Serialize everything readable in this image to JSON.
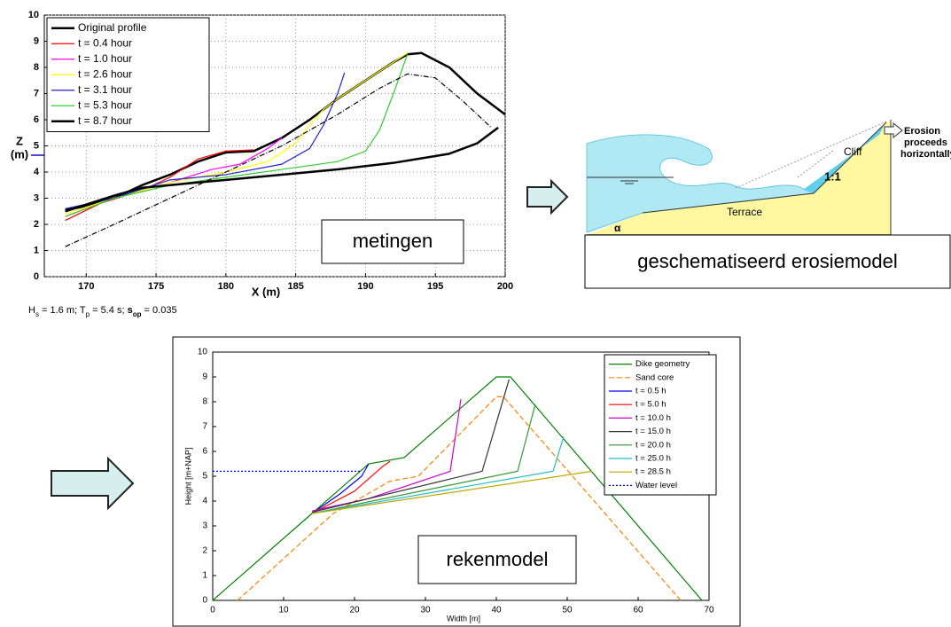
{
  "chart_data": [
    {
      "type": "line",
      "xlabel": "X (m)",
      "ylabel": [
        "Z",
        "(m)"
      ],
      "xlim": [
        167,
        200
      ],
      "ylim": [
        0,
        10
      ],
      "xticks": [
        170,
        175,
        180,
        185,
        190,
        195,
        200
      ],
      "yticks": [
        0,
        1,
        2,
        3,
        4,
        5,
        6,
        7,
        8,
        9,
        10
      ],
      "grid": true,
      "legend": "upper left",
      "annotation": "metingen",
      "caption": [
        "H",
        "s",
        " = 1.6 m; T",
        "p",
        " = 5.4 s; ",
        "s",
        "op",
        " = 0.035"
      ],
      "series": [
        {
          "name": "Original profile",
          "color": "#000000",
          "style": "thick",
          "x": [
            168.5,
            170,
            172,
            174,
            176,
            178,
            180,
            182,
            184,
            186,
            188,
            190,
            192,
            193,
            194,
            196,
            198,
            200
          ],
          "values": [
            2.55,
            2.7,
            3.0,
            3.5,
            3.9,
            4.4,
            4.75,
            4.8,
            5.3,
            6.0,
            6.8,
            7.5,
            8.2,
            8.5,
            8.55,
            8.0,
            7.0,
            6.2
          ]
        },
        {
          "name": "t = 0.4 hour",
          "color": "#ff0000",
          "style": "solid",
          "x": [
            168.5,
            171,
            174,
            176,
            178,
            180,
            182
          ],
          "values": [
            2.15,
            2.8,
            3.3,
            3.8,
            4.5,
            4.8,
            4.85
          ]
        },
        {
          "name": "t = 1.0 hour",
          "color": "#ff00ff",
          "style": "solid",
          "x": [
            168.5,
            172,
            176,
            179,
            181,
            183,
            184
          ],
          "values": [
            2.3,
            3.0,
            3.6,
            4.1,
            4.3,
            4.9,
            5.3
          ]
        },
        {
          "name": "t = 2.6 hour",
          "color": "#ffff00",
          "style": "solid",
          "x": [
            168.5,
            172,
            176,
            180,
            183,
            185,
            186,
            187,
            188,
            190,
            192,
            193
          ],
          "values": [
            2.4,
            3.0,
            3.6,
            4.0,
            4.4,
            5.1,
            5.8,
            6.4,
            6.8,
            7.5,
            8.2,
            8.55
          ]
        },
        {
          "name": "t = 3.1 hour",
          "color": "#2222cc",
          "style": "solid",
          "x": [
            168.5,
            172,
            176,
            180,
            184,
            186,
            187,
            188,
            188.5
          ],
          "values": [
            2.6,
            3.0,
            3.7,
            3.9,
            4.3,
            4.9,
            5.8,
            7.0,
            7.8
          ]
        },
        {
          "name": "t = 5.3 hour",
          "color": "#33cc33",
          "style": "solid",
          "x": [
            168.5,
            172,
            176,
            180,
            184,
            188,
            190,
            191,
            192,
            193
          ],
          "values": [
            2.3,
            3.0,
            3.5,
            3.8,
            4.1,
            4.4,
            4.8,
            5.6,
            7.0,
            8.5
          ]
        },
        {
          "name": "t = 8.7 hour",
          "color": "#000000",
          "style": "thick",
          "x": [
            168.5,
            172,
            174,
            176,
            178,
            180,
            184,
            188,
            192,
            196,
            198,
            199,
            199.5
          ],
          "values": [
            2.5,
            3.1,
            3.4,
            3.5,
            3.6,
            3.7,
            3.9,
            4.1,
            4.35,
            4.7,
            5.1,
            5.5,
            5.7
          ]
        },
        {
          "color": "#000000",
          "style": "dashdot",
          "x": [
            168.5,
            172,
            176,
            180,
            184,
            188,
            191,
            193,
            195,
            197,
            199
          ],
          "values": [
            1.15,
            2.0,
            3.0,
            4.0,
            5.0,
            6.2,
            7.2,
            7.75,
            7.6,
            6.7,
            5.7
          ]
        }
      ]
    },
    {
      "type": "line",
      "xlabel": "Width [m]",
      "ylabel": "Height [m+NAP]",
      "xlim": [
        0,
        70
      ],
      "ylim": [
        0,
        10
      ],
      "xticks": [
        0,
        10,
        20,
        30,
        40,
        50,
        60,
        70
      ],
      "yticks": [
        0,
        1,
        2,
        3,
        4,
        5,
        6,
        7,
        8,
        9,
        10
      ],
      "grid": false,
      "legend": "upper right",
      "annotation": "rekenmodel",
      "series": [
        {
          "name": "Dike geometry",
          "color": "#008000",
          "style": "solid",
          "x": [
            0,
            14,
            22,
            27,
            40,
            42,
            69
          ],
          "values": [
            0,
            3.5,
            5.5,
            5.75,
            9,
            9,
            0
          ]
        },
        {
          "name": "Sand core",
          "color": "#ff8000",
          "style": "dashed",
          "x": [
            3.5,
            17,
            25,
            29,
            40,
            41,
            66
          ],
          "values": [
            0,
            3.5,
            4.8,
            5.0,
            8.2,
            8.2,
            0
          ]
        },
        {
          "name": "t = 0.5 h",
          "color": "#0000ff",
          "style": "solid",
          "x": [
            14,
            18,
            21,
            22
          ],
          "values": [
            3.5,
            4.3,
            5.0,
            5.5
          ]
        },
        {
          "name": "t = 5.0 h",
          "color": "#ff0000",
          "style": "solid",
          "x": [
            14,
            20,
            24,
            25
          ],
          "values": [
            3.5,
            4.4,
            5.4,
            5.6
          ]
        },
        {
          "name": "t = 10.0 h",
          "color": "#cc00cc",
          "style": "solid",
          "x": [
            14,
            22,
            33.5,
            35
          ],
          "values": [
            3.6,
            4.1,
            5.2,
            8.1
          ]
        },
        {
          "name": "t = 15.0 h",
          "color": "#333333",
          "style": "solid",
          "x": [
            14,
            38,
            41.8
          ],
          "values": [
            3.55,
            5.2,
            8.9
          ]
        },
        {
          "name": "t = 20.0 h",
          "color": "#339933",
          "style": "solid",
          "x": [
            14,
            43,
            45.5
          ],
          "values": [
            3.5,
            5.2,
            7.9
          ]
        },
        {
          "name": "t = 25.0 h",
          "color": "#22bbcc",
          "style": "solid",
          "x": [
            14,
            48,
            49.5
          ],
          "values": [
            3.5,
            5.2,
            6.6
          ]
        },
        {
          "name": "t = 28.5 h",
          "color": "#bbaa00",
          "style": "solid",
          "x": [
            14,
            53.5
          ],
          "values": [
            3.5,
            5.2
          ]
        },
        {
          "name": "Water level",
          "color": "#0000ff",
          "style": "dotted",
          "x": [
            0,
            21
          ],
          "values": [
            5.2,
            5.2
          ]
        }
      ]
    }
  ],
  "diagram": {
    "caption": "geschematiseerd erosiemodel",
    "labels": [
      "Erosion",
      "proceeds",
      "horizontally",
      "Cliff",
      "1:1",
      "Terrace",
      "α"
    ]
  }
}
